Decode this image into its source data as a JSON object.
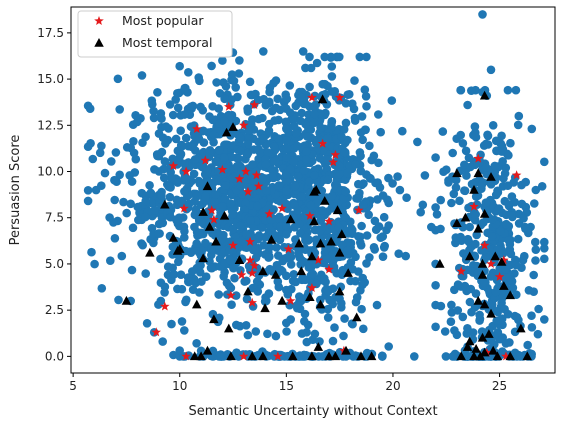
{
  "chart_data": {
    "type": "scatter",
    "xlabel": "Semantic Uncertainty without Context",
    "ylabel": "Persuasion Score",
    "xlim": [
      4.9,
      27.6
    ],
    "ylim": [
      -0.9,
      18.9
    ],
    "x_ticks": [
      5,
      10,
      15,
      20,
      25
    ],
    "y_ticks": [
      0.0,
      2.5,
      5.0,
      7.5,
      10.0,
      12.5,
      15.0,
      17.5
    ],
    "x_tick_labels": [
      "5",
      "10",
      "15",
      "20",
      "25"
    ],
    "y_tick_labels": [
      "0.0",
      "2.5",
      "5.0",
      "7.5",
      "10.0",
      "12.5",
      "15.0",
      "17.5"
    ],
    "grid": false,
    "legend_position": "top-left",
    "colors": {
      "all": "#1f77b4",
      "popular": "#e41a1c",
      "temporal": "#000000"
    },
    "series": [
      {
        "name": "",
        "marker": "circle",
        "color": "#1f77b4",
        "clusters": [
          {
            "cx": 13.0,
            "cy": 8.8,
            "sx": 2.8,
            "sy": 2.9,
            "n": 1300,
            "xmin": 5.7,
            "xmax": 21.5,
            "ymin": 0.0,
            "ymax": 16.5
          },
          {
            "cx": 17.0,
            "cy": 8.0,
            "sx": 1.2,
            "sy": 3.6,
            "n": 380,
            "xmin": 15.0,
            "xmax": 19.8,
            "ymin": 0.0,
            "ymax": 16.2
          },
          {
            "cx": 24.4,
            "cy": 6.2,
            "sx": 1.1,
            "sy": 3.6,
            "n": 380,
            "xmin": 22.0,
            "xmax": 27.1,
            "ymin": 0.0,
            "ymax": 14.4
          },
          {
            "cx": 15.5,
            "cy": 0.0,
            "sx": 2.5,
            "sy": 0.1,
            "n": 110,
            "xmin": 10.0,
            "xmax": 19.5,
            "ymin": 0.0,
            "ymax": 0.4
          },
          {
            "cx": 24.5,
            "cy": 0.0,
            "sx": 1.0,
            "sy": 0.1,
            "n": 60,
            "xmin": 23.0,
            "xmax": 26.5,
            "ymin": 0.0,
            "ymax": 0.4
          }
        ],
        "points": [
          [
            5.8,
            13.4
          ],
          [
            24.2,
            18.5
          ],
          [
            10.0,
            15.7
          ],
          [
            12.0,
            16.0
          ],
          [
            16.8,
            16.2
          ],
          [
            24.4,
            14.1
          ],
          [
            27.0,
            9.2
          ],
          [
            26.7,
            9.0
          ],
          [
            26.6,
            4.4
          ],
          [
            26.6,
            3.5
          ],
          [
            26.5,
            2.2
          ],
          [
            26.8,
            1.2
          ],
          [
            7.7,
            3.0
          ],
          [
            9.0,
            2.8
          ],
          [
            8.8,
            1.3
          ],
          [
            9.2,
            0.8
          ],
          [
            11.0,
            0.3
          ],
          [
            21.0,
            0.0
          ],
          [
            22.8,
            0.0
          ],
          [
            17.8,
            0.0
          ],
          [
            21.3,
            7.8
          ],
          [
            21.4,
            8.2
          ],
          [
            21.8,
            7.0
          ],
          [
            22.0,
            5.0
          ],
          [
            22.5,
            10.1
          ],
          [
            22.8,
            11.0
          ],
          [
            23.5,
            13.6
          ],
          [
            24.6,
            15.5
          ],
          [
            24.7,
            12.5
          ],
          [
            25.9,
            13.0
          ],
          [
            26.2,
            7.0
          ],
          [
            26.1,
            5.2
          ]
        ]
      },
      {
        "name": "Most popular",
        "marker": "star",
        "color": "#e41a1c",
        "points": [
          [
            12.3,
            13.5
          ],
          [
            13.5,
            13.6
          ],
          [
            16.2,
            14.0
          ],
          [
            17.5,
            14.0
          ],
          [
            10.8,
            12.3
          ],
          [
            13.0,
            12.5
          ],
          [
            16.7,
            11.5
          ],
          [
            9.7,
            10.3
          ],
          [
            10.3,
            10.0
          ],
          [
            11.2,
            10.6
          ],
          [
            12.0,
            10.1
          ],
          [
            12.8,
            9.6
          ],
          [
            13.1,
            10.0
          ],
          [
            13.6,
            9.8
          ],
          [
            13.2,
            8.9
          ],
          [
            13.7,
            9.2
          ],
          [
            17.3,
            10.9
          ],
          [
            17.2,
            10.5
          ],
          [
            10.2,
            8.0
          ],
          [
            11.5,
            7.9
          ],
          [
            11.6,
            7.4
          ],
          [
            14.2,
            7.7
          ],
          [
            14.8,
            8.0
          ],
          [
            16.1,
            7.6
          ],
          [
            17.0,
            7.3
          ],
          [
            18.4,
            7.9
          ],
          [
            12.5,
            6.0
          ],
          [
            13.3,
            6.2
          ],
          [
            13.3,
            5.2
          ],
          [
            13.5,
            4.9
          ],
          [
            15.1,
            5.8
          ],
          [
            16.5,
            5.2
          ],
          [
            17.0,
            4.7
          ],
          [
            12.9,
            4.4
          ],
          [
            13.4,
            4.5
          ],
          [
            12.4,
            3.3
          ],
          [
            13.4,
            2.9
          ],
          [
            15.2,
            3.0
          ],
          [
            16.2,
            3.7
          ],
          [
            8.9,
            1.3
          ],
          [
            10.3,
            0.0
          ],
          [
            14.6,
            0.0
          ],
          [
            17.7,
            0.3
          ],
          [
            24.0,
            10.7
          ],
          [
            25.8,
            9.8
          ],
          [
            23.8,
            8.1
          ],
          [
            23.2,
            4.6
          ],
          [
            24.3,
            6.0
          ],
          [
            24.6,
            5.0
          ],
          [
            25.2,
            5.2
          ],
          [
            25.0,
            4.3
          ],
          [
            24.4,
            0.2
          ],
          [
            25.3,
            0.0
          ],
          [
            9.3,
            2.7
          ],
          [
            13.0,
            0.0
          ]
        ]
      },
      {
        "name": "Most temporal",
        "marker": "triangle",
        "color": "#000000",
        "points": [
          [
            16.7,
            13.9
          ],
          [
            24.3,
            14.1
          ],
          [
            12.2,
            12.1
          ],
          [
            12.5,
            12.4
          ],
          [
            23.0,
            9.9
          ],
          [
            24.0,
            9.9
          ],
          [
            24.6,
            9.7
          ],
          [
            11.3,
            9.2
          ],
          [
            16.4,
            9.0
          ],
          [
            16.3,
            8.9
          ],
          [
            23.8,
            9.0
          ],
          [
            9.3,
            8.2
          ],
          [
            11.1,
            7.8
          ],
          [
            12.1,
            7.6
          ],
          [
            16.8,
            8.4
          ],
          [
            17.4,
            7.9
          ],
          [
            23.4,
            7.5
          ],
          [
            24.3,
            7.7
          ],
          [
            11.4,
            7.0
          ],
          [
            15.2,
            7.4
          ],
          [
            16.3,
            7.3
          ],
          [
            17.6,
            6.6
          ],
          [
            23.0,
            7.2
          ],
          [
            24.0,
            6.9
          ],
          [
            9.7,
            6.4
          ],
          [
            11.7,
            6.2
          ],
          [
            14.3,
            6.3
          ],
          [
            15.6,
            6.1
          ],
          [
            16.6,
            6.1
          ],
          [
            17.1,
            6.2
          ],
          [
            9.9,
            5.7
          ],
          [
            10.0,
            5.8
          ],
          [
            8.6,
            5.6
          ],
          [
            11.1,
            5.3
          ],
          [
            12.8,
            5.2
          ],
          [
            16.2,
            5.4
          ],
          [
            17.5,
            5.6
          ],
          [
            23.6,
            5.4
          ],
          [
            22.2,
            5.0
          ],
          [
            24.2,
            5.0
          ],
          [
            24.8,
            5.4
          ],
          [
            25.1,
            5.1
          ],
          [
            13.9,
            4.6
          ],
          [
            15.7,
            4.6
          ],
          [
            14.5,
            4.4
          ],
          [
            17.9,
            4.5
          ],
          [
            24.2,
            4.4
          ],
          [
            25.2,
            3.8
          ],
          [
            13.2,
            3.5
          ],
          [
            17.5,
            3.5
          ],
          [
            25.5,
            3.3
          ],
          [
            16.1,
            3.2
          ],
          [
            24.0,
            3.0
          ],
          [
            7.5,
            3.0
          ],
          [
            14.8,
            3.0
          ],
          [
            10.8,
            2.8
          ],
          [
            14.0,
            2.6
          ],
          [
            16.6,
            2.8
          ],
          [
            24.3,
            2.8
          ],
          [
            11.6,
            2.0
          ],
          [
            12.3,
            1.5
          ],
          [
            18.3,
            2.1
          ],
          [
            24.6,
            2.3
          ],
          [
            26.0,
            1.5
          ],
          [
            24.5,
            1.2
          ],
          [
            24.2,
            1.0
          ],
          [
            23.6,
            0.8
          ],
          [
            23.5,
            0.5
          ],
          [
            23.9,
            0.4
          ],
          [
            24.3,
            0.2
          ],
          [
            24.7,
            0.3
          ],
          [
            11.3,
            0.3
          ],
          [
            12.4,
            0.0
          ],
          [
            13.4,
            0.0
          ],
          [
            13.9,
            0.0
          ],
          [
            15.3,
            0.0
          ],
          [
            16.2,
            0.0
          ],
          [
            17.8,
            0.3
          ],
          [
            16.5,
            0.5
          ],
          [
            18.5,
            0.0
          ],
          [
            19.0,
            0.0
          ],
          [
            23.2,
            0.0
          ],
          [
            23.8,
            0.0
          ],
          [
            24.1,
            0.0
          ],
          [
            24.9,
            0.0
          ],
          [
            25.5,
            0.0
          ],
          [
            26.3,
            0.0
          ],
          [
            10.7,
            0.0
          ],
          [
            11.0,
            0.0
          ],
          [
            17.0,
            0.0
          ],
          [
            17.3,
            0.0
          ]
        ]
      }
    ]
  }
}
